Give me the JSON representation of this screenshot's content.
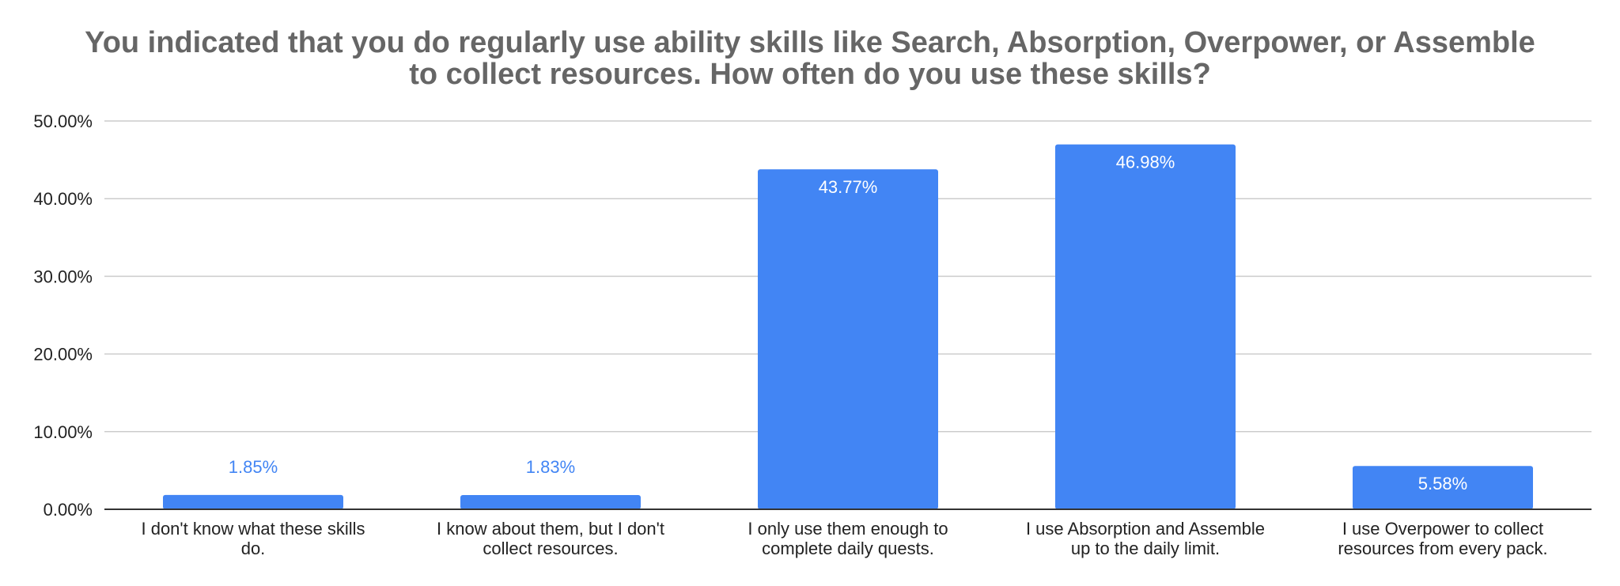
{
  "chart_data": {
    "type": "bar",
    "title_lines": [
      "You indicated that you do regularly use ability skills like Search, Absorption, Overpower, or Assemble",
      "to collect resources. How often do you use these skills?"
    ],
    "categories": [
      [
        "I don't know what these skills",
        "do."
      ],
      [
        "I know about them, but I don't",
        "collect resources."
      ],
      [
        "I only use them enough to",
        "complete daily quests."
      ],
      [
        "I use Absorption and Assemble",
        "up to the daily limit."
      ],
      [
        "I use Overpower to collect",
        "resources from every pack."
      ]
    ],
    "values": [
      1.85,
      1.83,
      43.77,
      46.98,
      5.58
    ],
    "data_labels": [
      "1.85%",
      "1.83%",
      "43.77%",
      "46.98%",
      "5.58%"
    ],
    "ylim": [
      0,
      50
    ],
    "yticks": [
      0,
      10,
      20,
      30,
      40,
      50
    ],
    "ytick_labels": [
      "0.00%",
      "10.00%",
      "20.00%",
      "30.00%",
      "40.00%",
      "50.00%"
    ],
    "xlabel": "",
    "ylabel": "",
    "grid": true,
    "legend": "none",
    "colors": {
      "bar": "#4285F4",
      "label_inside": "#ffffff",
      "label_outside": "#4285F4",
      "grid": "#cccccc",
      "axis": "#333333",
      "title": "#666666"
    }
  }
}
